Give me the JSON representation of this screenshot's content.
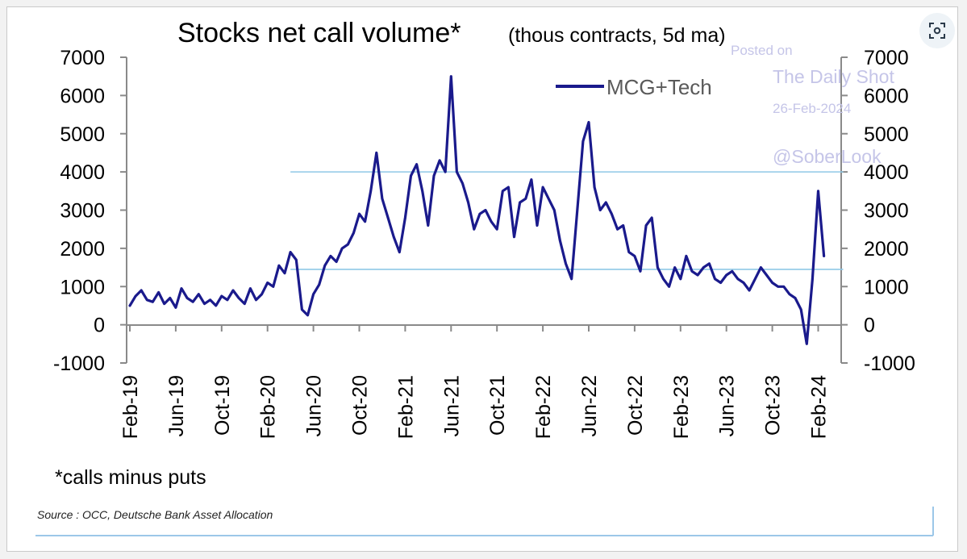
{
  "ui": {
    "expand_icon": "expand-icon",
    "accent": "#1a1a8c"
  },
  "chart_data": {
    "type": "line",
    "title": "Stocks net call volume*",
    "subtitle": "(thous contracts, 5d ma)",
    "ylim": [
      -1000,
      7000
    ],
    "y_ticks": [
      "7000",
      "6000",
      "5000",
      "4000",
      "3000",
      "2000",
      "1000",
      "0",
      "-1000"
    ],
    "y_ticks_right": [
      "7000",
      "6000",
      "5000",
      "4000",
      "3000",
      "2000",
      "1000",
      "0",
      "-1000"
    ],
    "x_ticks": [
      "Feb-19",
      "Jun-19",
      "Oct-19",
      "Feb-20",
      "Jun-20",
      "Oct-20",
      "Feb-21",
      "Jun-21",
      "Oct-21",
      "Feb-22",
      "Jun-22",
      "Oct-22",
      "Feb-23",
      "Jun-23",
      "Oct-23",
      "Feb-24"
    ],
    "legend": {
      "position": "top-right"
    },
    "footnote": "*calls minus puts",
    "source": "Source : OCC, Deutsche Bank Asset Allocation",
    "watermark": [
      "Posted on",
      "The Daily Shot",
      "26-Feb-2024",
      "@SoberLook"
    ],
    "reference_lines": [
      {
        "value": 4000,
        "x_start": "Apr-20",
        "x_end": "Feb-24",
        "color": "#8fc8e6"
      },
      {
        "value": 1450,
        "x_start": "Apr-20",
        "x_end": "Feb-24",
        "color": "#8fc8e6"
      }
    ],
    "series": [
      {
        "name": "MCG+Tech",
        "color": "#1a1a8c",
        "x": [
          0,
          0.5,
          1,
          1.5,
          2,
          2.5,
          3,
          3.5,
          4,
          4.5,
          5,
          5.5,
          6,
          6.5,
          7,
          7.5,
          8,
          8.5,
          9,
          9.5,
          10,
          10.5,
          11,
          11.5,
          12,
          12.5,
          13,
          13.5,
          14,
          14.5,
          15,
          15.5,
          16,
          16.5,
          17,
          17.5,
          18,
          18.5,
          19,
          19.5,
          20,
          20.5,
          21,
          21.5,
          22,
          22.5,
          23,
          23.5,
          24,
          24.5,
          25,
          25.5,
          26,
          26.5,
          27,
          27.5,
          28,
          28.5,
          29,
          29.5,
          30,
          30.5,
          31,
          31.5,
          32,
          32.5,
          33,
          33.5,
          34,
          34.5,
          35,
          35.5,
          36,
          36.5,
          37,
          37.5,
          38,
          38.5,
          39,
          39.5,
          40,
          40.5,
          41,
          41.5,
          42,
          42.5,
          43,
          43.5,
          44,
          44.5,
          45,
          45.5,
          46,
          46.5,
          47,
          47.5,
          48,
          48.5,
          49,
          49.5,
          50,
          50.5,
          51,
          51.5,
          52,
          52.5,
          53,
          53.5,
          54,
          54.5,
          55,
          55.5,
          56,
          56.5,
          57,
          57.5,
          58,
          58.5,
          59,
          59.5,
          60,
          60.5
        ],
        "values": [
          500,
          750,
          900,
          650,
          600,
          850,
          550,
          700,
          450,
          950,
          700,
          600,
          800,
          550,
          650,
          500,
          750,
          650,
          900,
          700,
          550,
          950,
          650,
          800,
          1100,
          1000,
          1550,
          1350,
          1900,
          1700,
          400,
          250,
          800,
          1050,
          1550,
          1800,
          1650,
          2000,
          2100,
          2400,
          2900,
          2700,
          3500,
          4500,
          3300,
          2800,
          2300,
          1900,
          2800,
          3900,
          4200,
          3500,
          2600,
          3900,
          4300,
          4000,
          6500,
          4000,
          3700,
          3200,
          2500,
          2900,
          3000,
          2700,
          2500,
          3500,
          3600,
          2300,
          3200,
          3300,
          3800,
          2600,
          3600,
          3300,
          3000,
          2200,
          1600,
          1200,
          3000,
          4800,
          5300,
          3600,
          3000,
          3200,
          2900,
          2500,
          2600,
          1900,
          1800,
          1400,
          2600,
          2800,
          1500,
          1200,
          1000,
          1500,
          1200,
          1800,
          1400,
          1300,
          1500,
          1600,
          1200,
          1100,
          1300,
          1400,
          1200,
          1100,
          900,
          1200,
          1500,
          1300,
          1100,
          1000,
          1000,
          800,
          700,
          400,
          -500,
          1200,
          3500,
          1800
        ]
      }
    ]
  }
}
